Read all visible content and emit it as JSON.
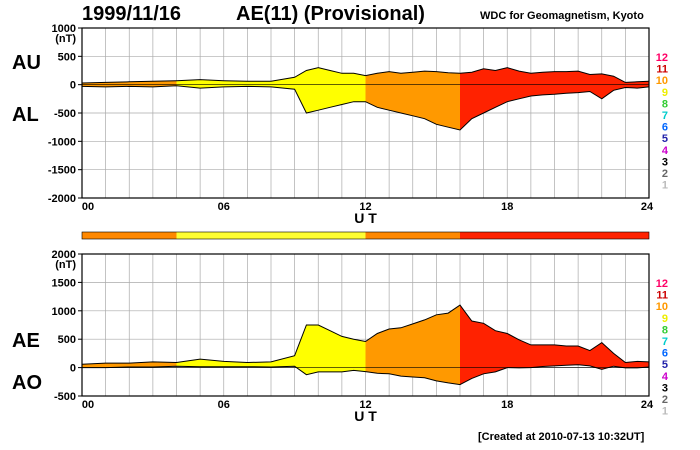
{
  "header": {
    "date": "1999/11/16",
    "title": "AE(11) (Provisional)",
    "source": "WDC for Geomagnetism, Kyoto",
    "created": "[Created at 2010-07-13 10:32UT]"
  },
  "colors": {
    "1": "#bbbbbb",
    "2": "#666666",
    "3": "#000000",
    "4": "#cc00cc",
    "5": "#2222aa",
    "6": "#0066ff",
    "7": "#00cccc",
    "8": "#33cc33",
    "9": "#eeee00",
    "10": "#ff9900",
    "11": "#cc0000",
    "12": "#ff0066",
    "fill_y": "#ffff00",
    "fill_o": "#ff9900",
    "fill_r": "#ff2200",
    "strip_y": "#ffff33",
    "strip_o": "#ff8800",
    "strip_r": "#ff2200",
    "grid": "#aaaaaa"
  },
  "chart_data": [
    {
      "type": "area",
      "id": "au-al",
      "label_upper": "AU",
      "label_lower": "AL",
      "unit": "(nT)",
      "xlabel": "U T",
      "xlim": [
        0,
        24
      ],
      "ylim": [
        -2000,
        1000
      ],
      "yticks": [
        1000,
        500,
        0,
        -500,
        -1000,
        -1500,
        -2000
      ],
      "xticks": [
        "00",
        "06",
        "12",
        "18",
        "24"
      ],
      "kp_scale": [
        "12",
        "11",
        "10",
        "9",
        "8",
        "7",
        "6",
        "5",
        "4",
        "3",
        "2",
        "1"
      ],
      "series": [
        {
          "name": "AU",
          "x": [
            0,
            1,
            2,
            3,
            4,
            5,
            6,
            7,
            8,
            9,
            9.5,
            10,
            10.5,
            11,
            11.5,
            12,
            12.5,
            13,
            13.5,
            14,
            14.5,
            15,
            15.5,
            16,
            16.5,
            17,
            17.5,
            18,
            18.5,
            19,
            19.5,
            20,
            20.5,
            21,
            21.5,
            22,
            22.5,
            23,
            23.5,
            24
          ],
          "y": [
            30,
            40,
            50,
            60,
            70,
            90,
            70,
            60,
            60,
            130,
            250,
            300,
            250,
            200,
            200,
            160,
            200,
            230,
            200,
            220,
            240,
            230,
            210,
            200,
            220,
            280,
            250,
            300,
            240,
            200,
            220,
            230,
            230,
            240,
            180,
            190,
            150,
            40,
            50,
            60
          ]
        },
        {
          "name": "AL",
          "x": [
            0,
            1,
            2,
            3,
            4,
            5,
            6,
            7,
            8,
            9,
            9.5,
            10,
            10.5,
            11,
            11.5,
            12,
            12.5,
            13,
            13.5,
            14,
            14.5,
            15,
            15.5,
            16,
            16.5,
            17,
            17.5,
            18,
            18.5,
            19,
            19.5,
            20,
            20.5,
            21,
            21.5,
            22,
            22.5,
            23,
            23.5,
            24
          ],
          "y": [
            -30,
            -40,
            -30,
            -40,
            -20,
            -60,
            -40,
            -30,
            -40,
            -80,
            -500,
            -450,
            -400,
            -350,
            -300,
            -300,
            -400,
            -450,
            -500,
            -550,
            -600,
            -700,
            -750,
            -800,
            -600,
            -500,
            -400,
            -300,
            -250,
            -200,
            -180,
            -170,
            -150,
            -140,
            -120,
            -250,
            -100,
            -50,
            -60,
            -40
          ]
        }
      ],
      "segments": [
        {
          "from": 0,
          "to": 4,
          "fill": "fill_o"
        },
        {
          "from": 4,
          "to": 12,
          "fill": "fill_y"
        },
        {
          "from": 12,
          "to": 16,
          "fill": "fill_o"
        },
        {
          "from": 16,
          "to": 24,
          "fill": "fill_r"
        }
      ]
    },
    {
      "type": "area",
      "id": "ae-ao",
      "label_upper": "AE",
      "label_lower": "AO",
      "unit": "(nT)",
      "xlabel": "U T",
      "xlim": [
        0,
        24
      ],
      "ylim": [
        -500,
        2000
      ],
      "yticks": [
        2000,
        1500,
        1000,
        500,
        0,
        -500
      ],
      "xticks": [
        "00",
        "06",
        "12",
        "18",
        "24"
      ],
      "kp_scale": [
        "12",
        "11",
        "10",
        "9",
        "8",
        "7",
        "6",
        "5",
        "4",
        "3",
        "2",
        "1"
      ],
      "series": [
        {
          "name": "AE",
          "x": [
            0,
            1,
            2,
            3,
            4,
            5,
            6,
            7,
            8,
            9,
            9.5,
            10,
            10.5,
            11,
            11.5,
            12,
            12.5,
            13,
            13.5,
            14,
            14.5,
            15,
            15.5,
            16,
            16.5,
            17,
            17.5,
            18,
            18.5,
            19,
            19.5,
            20,
            20.5,
            21,
            21.5,
            22,
            22.5,
            23,
            23.5,
            24
          ],
          "y": [
            60,
            80,
            80,
            100,
            90,
            150,
            110,
            90,
            100,
            210,
            750,
            750,
            650,
            550,
            500,
            460,
            600,
            680,
            700,
            770,
            840,
            930,
            960,
            1100,
            820,
            780,
            650,
            600,
            490,
            400,
            400,
            400,
            380,
            380,
            300,
            440,
            250,
            90,
            110,
            100
          ]
        },
        {
          "name": "AO",
          "x": [
            0,
            1,
            2,
            3,
            4,
            5,
            6,
            7,
            8,
            9,
            9.5,
            10,
            10.5,
            11,
            11.5,
            12,
            12.5,
            13,
            13.5,
            14,
            14.5,
            15,
            15.5,
            16,
            16.5,
            17,
            17.5,
            18,
            18.5,
            19,
            19.5,
            20,
            20.5,
            21,
            21.5,
            22,
            22.5,
            23,
            23.5,
            24
          ],
          "y": [
            0,
            0,
            10,
            10,
            25,
            15,
            15,
            15,
            10,
            25,
            -125,
            -75,
            -75,
            -75,
            -50,
            -70,
            -100,
            -110,
            -150,
            -165,
            -180,
            -235,
            -270,
            -300,
            -190,
            -110,
            -75,
            0,
            -5,
            0,
            20,
            30,
            40,
            50,
            30,
            -30,
            25,
            -5,
            -5,
            10
          ]
        }
      ],
      "segments": [
        {
          "from": 0,
          "to": 4,
          "fill": "fill_o"
        },
        {
          "from": 4,
          "to": 12,
          "fill": "fill_y"
        },
        {
          "from": 12,
          "to": 16,
          "fill": "fill_o"
        },
        {
          "from": 16,
          "to": 24,
          "fill": "fill_r"
        }
      ]
    }
  ],
  "strip": [
    {
      "from": 0,
      "to": 4,
      "color": "strip_o"
    },
    {
      "from": 4,
      "to": 12,
      "color": "strip_y"
    },
    {
      "from": 12,
      "to": 16,
      "color": "strip_o"
    },
    {
      "from": 16,
      "to": 24,
      "color": "strip_r"
    }
  ]
}
